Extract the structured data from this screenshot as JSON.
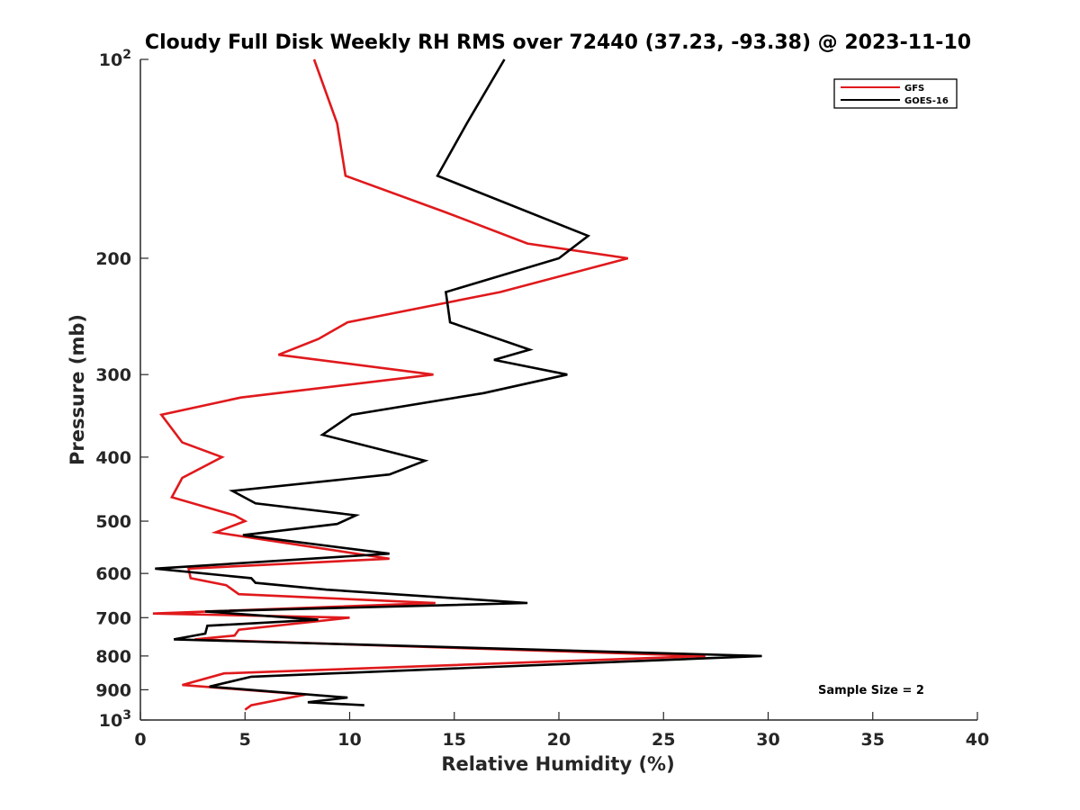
{
  "chart_data": {
    "type": "line",
    "title": "Cloudy Full Disk Weekly RH RMS over 72440 (37.23, -93.38) @ 2023-11-10",
    "xlabel": "Relative Humidity (%)",
    "ylabel": "Pressure (mb)",
    "xlim": [
      0,
      40
    ],
    "ylim": [
      100,
      1000
    ],
    "yscale": "log",
    "y_reversed": true,
    "grid": false,
    "legend_position": "top-right",
    "x_ticks": [
      "0",
      "5",
      "10",
      "15",
      "20",
      "25",
      "30",
      "35",
      "40"
    ],
    "y_ticks": [
      {
        "value": 100,
        "base": "10",
        "exp": "2"
      },
      {
        "value": 200,
        "label": "200"
      },
      {
        "value": 300,
        "label": "300"
      },
      {
        "value": 400,
        "label": "400"
      },
      {
        "value": 500,
        "label": "500"
      },
      {
        "value": 600,
        "label": "600"
      },
      {
        "value": 700,
        "label": "700"
      },
      {
        "value": 800,
        "label": "800"
      },
      {
        "value": 900,
        "label": "900"
      },
      {
        "value": 1000,
        "base": "10",
        "exp": "3"
      }
    ],
    "annotation": "Sample Size = 2",
    "series": [
      {
        "name": "GFS",
        "color": "#e0191c",
        "points": [
          [
            8.3,
            100
          ],
          [
            9.4,
            125
          ],
          [
            9.8,
            150
          ],
          [
            14.5,
            170
          ],
          [
            18.5,
            190
          ],
          [
            23.3,
            200
          ],
          [
            17.2,
            225
          ],
          [
            9.9,
            250
          ],
          [
            8.5,
            265
          ],
          [
            6.6,
            280
          ],
          [
            14.0,
            300
          ],
          [
            4.8,
            325
          ],
          [
            1.0,
            345
          ],
          [
            2.0,
            380
          ],
          [
            3.9,
            400
          ],
          [
            2.0,
            430
          ],
          [
            1.5,
            460
          ],
          [
            4.5,
            490
          ],
          [
            5.0,
            500
          ],
          [
            3.6,
            520
          ],
          [
            11.9,
            570
          ],
          [
            2.3,
            590
          ],
          [
            2.4,
            610
          ],
          [
            4.1,
            625
          ],
          [
            4.7,
            645
          ],
          [
            14.1,
            665
          ],
          [
            0.6,
            690
          ],
          [
            10.0,
            700
          ],
          [
            4.7,
            730
          ],
          [
            4.5,
            745
          ],
          [
            2.6,
            755
          ],
          [
            27.0,
            800
          ],
          [
            4.0,
            850
          ],
          [
            2.0,
            885
          ],
          [
            7.9,
            915
          ],
          [
            5.3,
            950
          ],
          [
            5.0,
            965
          ]
        ]
      },
      {
        "name": "GOES-16",
        "color": "#000000",
        "points": [
          [
            17.4,
            100
          ],
          [
            15.6,
            125
          ],
          [
            14.2,
            150
          ],
          [
            21.4,
            185
          ],
          [
            20.0,
            200
          ],
          [
            14.6,
            225
          ],
          [
            14.8,
            250
          ],
          [
            18.6,
            275
          ],
          [
            16.9,
            285
          ],
          [
            20.4,
            300
          ],
          [
            16.4,
            320
          ],
          [
            10.1,
            345
          ],
          [
            8.7,
            370
          ],
          [
            13.6,
            405
          ],
          [
            11.9,
            425
          ],
          [
            4.4,
            450
          ],
          [
            5.5,
            470
          ],
          [
            10.3,
            490
          ],
          [
            9.4,
            505
          ],
          [
            4.9,
            525
          ],
          [
            11.9,
            560
          ],
          [
            0.7,
            590
          ],
          [
            5.3,
            610
          ],
          [
            5.5,
            620
          ],
          [
            8.9,
            635
          ],
          [
            18.5,
            665
          ],
          [
            3.1,
            685
          ],
          [
            8.5,
            705
          ],
          [
            3.2,
            720
          ],
          [
            3.1,
            740
          ],
          [
            1.6,
            755
          ],
          [
            29.7,
            800
          ],
          [
            5.3,
            860
          ],
          [
            3.3,
            890
          ],
          [
            9.9,
            925
          ],
          [
            8.0,
            940
          ],
          [
            10.7,
            950
          ]
        ]
      }
    ]
  }
}
